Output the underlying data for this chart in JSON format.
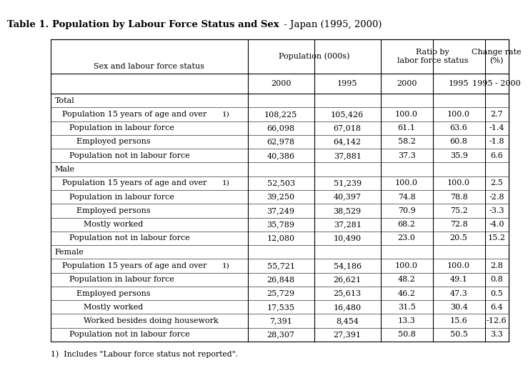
{
  "title_bold": "Table 1. Population by Labour Force Status and Sex",
  "title_regular": " - Japan (1995, 2000)",
  "rows": [
    {
      "label": "Total",
      "indent": 0,
      "footnote": false,
      "values": [
        "",
        "",
        "",
        "",
        ""
      ]
    },
    {
      "label": "Population 15 years of age and over",
      "indent": 1,
      "footnote": true,
      "values": [
        "108,225",
        "105,426",
        "100.0",
        "100.0",
        "2.7"
      ]
    },
    {
      "label": "Population in labour force",
      "indent": 2,
      "footnote": false,
      "values": [
        "66,098",
        "67,018",
        "61.1",
        "63.6",
        "-1.4"
      ]
    },
    {
      "label": "Employed persons",
      "indent": 3,
      "footnote": false,
      "values": [
        "62,978",
        "64,142",
        "58.2",
        "60.8",
        "-1.8"
      ]
    },
    {
      "label": "Population not in labour force",
      "indent": 2,
      "footnote": false,
      "values": [
        "40,386",
        "37,881",
        "37.3",
        "35.9",
        "6.6"
      ]
    },
    {
      "label": "Male",
      "indent": 0,
      "footnote": false,
      "values": [
        "",
        "",
        "",
        "",
        ""
      ]
    },
    {
      "label": "Population 15 years of age and over",
      "indent": 1,
      "footnote": true,
      "values": [
        "52,503",
        "51,239",
        "100.0",
        "100.0",
        "2.5"
      ]
    },
    {
      "label": "Population in labour force",
      "indent": 2,
      "footnote": false,
      "values": [
        "39,250",
        "40,397",
        "74.8",
        "78.8",
        "-2.8"
      ]
    },
    {
      "label": "Employed persons",
      "indent": 3,
      "footnote": false,
      "values": [
        "37,249",
        "38,529",
        "70.9",
        "75.2",
        "-3.3"
      ]
    },
    {
      "label": "Mostly worked",
      "indent": 4,
      "footnote": false,
      "values": [
        "35,789",
        "37,281",
        "68.2",
        "72.8",
        "-4.0"
      ]
    },
    {
      "label": "Population not in labour force",
      "indent": 2,
      "footnote": false,
      "values": [
        "12,080",
        "10,490",
        "23.0",
        "20.5",
        "15.2"
      ]
    },
    {
      "label": "Female",
      "indent": 0,
      "footnote": false,
      "values": [
        "",
        "",
        "",
        "",
        ""
      ]
    },
    {
      "label": "Population 15 years of age and over",
      "indent": 1,
      "footnote": true,
      "values": [
        "55,721",
        "54,186",
        "100.0",
        "100.0",
        "2.8"
      ]
    },
    {
      "label": "Population in labour force",
      "indent": 2,
      "footnote": false,
      "values": [
        "26,848",
        "26,621",
        "48.2",
        "49.1",
        "0.8"
      ]
    },
    {
      "label": "Employed persons",
      "indent": 3,
      "footnote": false,
      "values": [
        "25,729",
        "25,613",
        "46.2",
        "47.3",
        "0.5"
      ]
    },
    {
      "label": "Mostly worked",
      "indent": 4,
      "footnote": false,
      "values": [
        "17,535",
        "16,480",
        "31.5",
        "30.4",
        "6.4"
      ]
    },
    {
      "label": "Worked besides doing housework",
      "indent": 4,
      "footnote": false,
      "values": [
        "7,391",
        "8,454",
        "13.3",
        "15.6",
        "-12.6"
      ]
    },
    {
      "label": "Population not in labour force",
      "indent": 2,
      "footnote": false,
      "values": [
        "28,307",
        "27,391",
        "50.8",
        "50.5",
        "3.3"
      ]
    }
  ],
  "footnote_text": "1)  Includes \"Labour force status not reported\".",
  "bg_color": "#ffffff",
  "text_color": "#000000",
  "line_color": "#000000",
  "title_fontsize": 9.5,
  "table_fontsize": 8.0,
  "footnote_fontsize": 7.8
}
